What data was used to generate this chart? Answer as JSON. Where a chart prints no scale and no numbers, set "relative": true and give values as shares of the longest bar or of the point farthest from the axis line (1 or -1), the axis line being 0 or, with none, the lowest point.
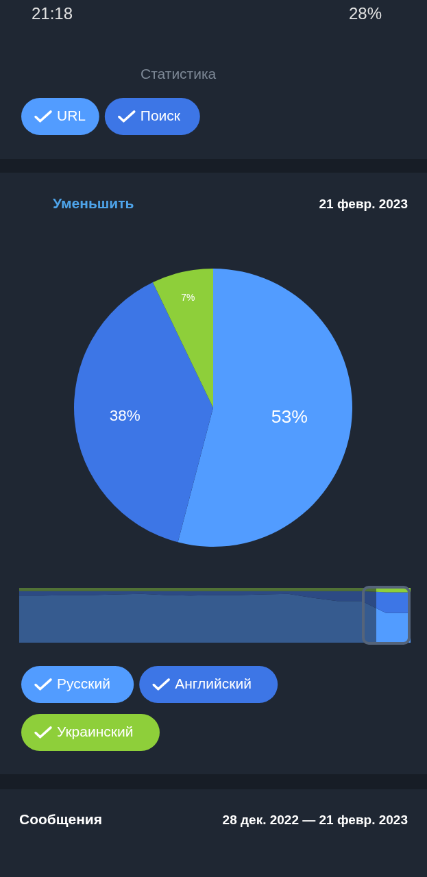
{
  "chart_data": [
    {
      "type": "other",
      "title": "Статистика",
      "annotations": [
        "21:18",
        "28%"
      ],
      "categories": [
        "URL",
        "Поиск"
      ],
      "colors": [
        "#529cff",
        "#3d76e6"
      ]
    },
    {
      "type": "pie",
      "subtitle": "21 февр. 2023",
      "annotations": [
        "Уменьшить"
      ],
      "categories": [
        "Русский",
        "Английский",
        "Украинский"
      ],
      "values": [
        53,
        38,
        7
      ],
      "colors": [
        "#529cff",
        "#3d76e6",
        "#8ecf3a"
      ],
      "value_labels": [
        "53%",
        "38%",
        "7%"
      ],
      "legend": "bottom"
    },
    {
      "type": "area",
      "stacked": true,
      "relative": true,
      "categories": [
        null,
        null,
        null,
        null,
        null,
        null,
        null,
        null,
        null,
        null,
        null,
        null,
        null,
        null,
        null,
        null,
        null
      ],
      "series": [
        {
          "color": "#529cff",
          "values": [
            0.86,
            0.86,
            0.87,
            0.87,
            0.88,
            0.89,
            0.87,
            0.86,
            0.87,
            0.87,
            0.88,
            0.89,
            0.82,
            0.76,
            0.76,
            0.54,
            0.54
          ]
        },
        {
          "color": "#3d76e6",
          "values": [
            0.08,
            0.08,
            0.07,
            0.07,
            0.06,
            0.05,
            0.07,
            0.08,
            0.07,
            0.07,
            0.06,
            0.05,
            0.12,
            0.18,
            0.18,
            0.38,
            0.38
          ]
        },
        {
          "color": "#8ecf3a",
          "values": [
            0.06,
            0.06,
            0.06,
            0.06,
            0.06,
            0.06,
            0.06,
            0.06,
            0.06,
            0.06,
            0.06,
            0.06,
            0.06,
            0.06,
            0.06,
            0.08,
            0.08
          ]
        }
      ]
    },
    {
      "type": "other",
      "title": "Сообщения",
      "subtitle": "28 дек. 2022 — 21 февр. 2023"
    }
  ]
}
